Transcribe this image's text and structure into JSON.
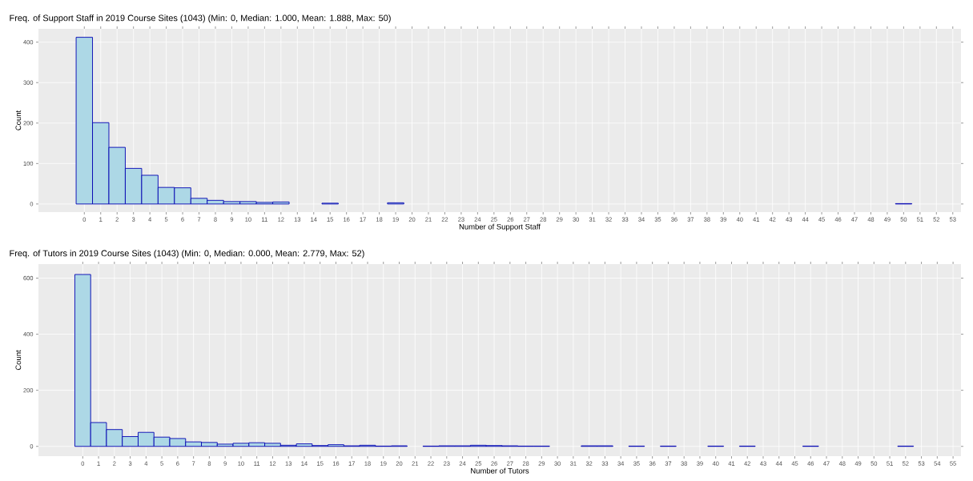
{
  "chart_data": [
    {
      "type": "histogram",
      "title": "Freq. of Support Staff in 2019 Course Sites (1043) (Min: 0, Median: 1.000, Mean: 1.888, Max: 50)",
      "xlabel": "Number of Support Staff",
      "ylabel": "Count",
      "color": "#add8e6",
      "grid": true,
      "bins": [
        -0.5,
        0.5,
        1.5,
        2.5,
        3.5,
        4.5,
        5.5,
        6.5,
        7.5,
        8.5,
        9.5,
        10.5,
        11.5,
        12.5,
        13.5,
        14.5,
        15.5,
        16.5,
        17.5,
        18.5,
        19.5,
        20.5,
        21.5,
        22.5,
        23.5,
        24.5,
        25.5,
        26.5,
        27.5,
        28.5,
        29.5,
        30.5,
        31.5,
        32.5,
        33.5,
        34.5,
        35.5,
        36.5,
        37.5,
        38.5,
        39.5,
        40.5,
        41.5,
        42.5,
        43.5,
        44.5,
        45.5,
        46.5,
        47.5,
        48.5,
        49.5,
        50.5
      ],
      "values": [
        412,
        201,
        140,
        88,
        71,
        41,
        40,
        14,
        9,
        6,
        6,
        4,
        5,
        0,
        0,
        2,
        0,
        0,
        0,
        3,
        0,
        0,
        0,
        0,
        0,
        0,
        0,
        0,
        0,
        0,
        0,
        0,
        0,
        0,
        0,
        0,
        0,
        0,
        0,
        0,
        0,
        0,
        0,
        0,
        0,
        0,
        0,
        0,
        0,
        0,
        1
      ],
      "xlim": [
        -2.8,
        53.5
      ],
      "ylim": [
        -20,
        433
      ],
      "xticks": [
        0,
        1,
        2,
        3,
        4,
        5,
        6,
        7,
        8,
        9,
        10,
        11,
        12,
        13,
        14,
        15,
        16,
        17,
        18,
        19,
        20,
        21,
        22,
        23,
        24,
        25,
        26,
        27,
        28,
        29,
        30,
        31,
        32,
        33,
        34,
        35,
        36,
        37,
        38,
        39,
        40,
        41,
        42,
        43,
        44,
        45,
        46,
        47,
        48,
        49,
        50,
        51,
        52,
        53
      ],
      "yticks": [
        0,
        100,
        200,
        300,
        400
      ]
    },
    {
      "type": "histogram",
      "title": "Freq. of Tutors in 2019 Course Sites (1043) (Min: 0, Median: 0.000, Mean: 2.779, Max: 52)",
      "xlabel": "Number of Tutors",
      "ylabel": "Count",
      "color": "#add8e6",
      "grid": true,
      "bins": [
        -0.5,
        0.5,
        1.5,
        2.5,
        3.5,
        4.5,
        5.5,
        6.5,
        7.5,
        8.5,
        9.5,
        10.5,
        11.5,
        12.5,
        13.5,
        14.5,
        15.5,
        16.5,
        17.5,
        18.5,
        19.5,
        20.5,
        21.5,
        22.5,
        23.5,
        24.5,
        25.5,
        26.5,
        27.5,
        28.5,
        29.5,
        30.5,
        31.5,
        32.5,
        33.5,
        34.5,
        35.5,
        36.5,
        37.5,
        38.5,
        39.5,
        40.5,
        41.5,
        42.5,
        43.5,
        44.5,
        45.5,
        46.5,
        47.5,
        48.5,
        49.5,
        50.5,
        51.5,
        52.5
      ],
      "values": [
        613,
        85,
        60,
        35,
        50,
        33,
        28,
        16,
        14,
        8,
        11,
        13,
        11,
        4,
        9,
        3,
        6,
        2,
        4,
        1,
        2,
        0,
        1,
        2,
        2,
        4,
        3,
        2,
        1,
        1,
        0,
        0,
        2,
        2,
        0,
        1,
        0,
        1,
        0,
        0,
        1,
        0,
        1,
        0,
        0,
        0,
        1,
        0,
        0,
        0,
        0,
        0,
        1
      ],
      "xlim": [
        -2.8,
        55.5
      ],
      "ylim": [
        -35,
        650
      ],
      "xticks": [
        0,
        1,
        2,
        3,
        4,
        5,
        6,
        7,
        8,
        9,
        10,
        11,
        12,
        13,
        14,
        15,
        16,
        17,
        18,
        19,
        20,
        21,
        22,
        23,
        24,
        25,
        26,
        27,
        28,
        29,
        30,
        31,
        32,
        33,
        34,
        35,
        36,
        37,
        38,
        39,
        40,
        41,
        42,
        43,
        44,
        45,
        46,
        47,
        48,
        49,
        50,
        51,
        52,
        53,
        54,
        55
      ],
      "yticks": [
        0,
        200,
        400,
        600
      ]
    }
  ]
}
